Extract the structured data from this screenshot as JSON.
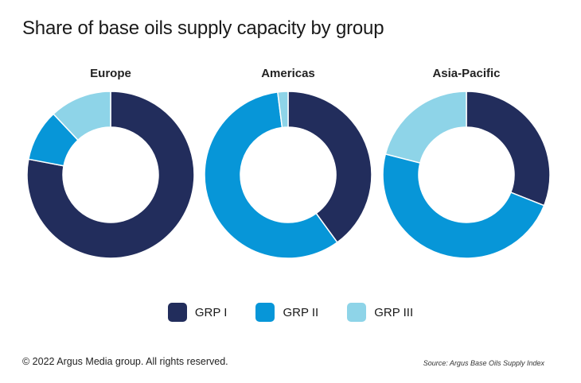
{
  "chart_data": {
    "type": "pie",
    "title": "Share of base oils supply capacity by group",
    "legend_position": "bottom",
    "groups": [
      "GRP I",
      "GRP II",
      "GRP III"
    ],
    "colors": [
      "#222d5c",
      "#0796d8",
      "#8ed4e8"
    ],
    "charts": [
      {
        "name": "Europe",
        "values": [
          78,
          10,
          12
        ]
      },
      {
        "name": "Americas",
        "values": [
          40,
          58,
          2
        ]
      },
      {
        "name": "Asia-Pacific",
        "values": [
          31,
          48,
          21
        ]
      }
    ]
  },
  "footer": {
    "copyright": "© 2022 Argus Media group. All rights reserved.",
    "source": "Source: Argus Base Oils Supply Index"
  }
}
